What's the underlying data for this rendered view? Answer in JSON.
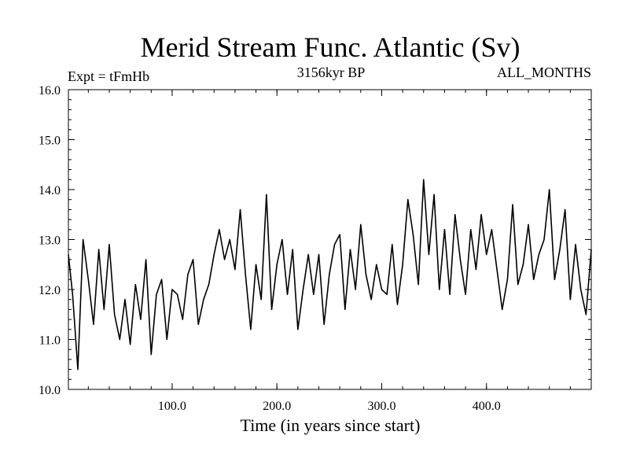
{
  "chart_data": {
    "type": "line",
    "title": "Merid Stream Func. Atlantic (Sv)",
    "subtitle_left": "Expt = tFmHb",
    "subtitle_center": "3156kyr BP",
    "subtitle_right": "ALL_MONTHS",
    "xlabel": "Time (in years since start)",
    "ylabel": "",
    "xlim": [
      1,
      500
    ],
    "ylim": [
      10.0,
      16.0
    ],
    "xticks": [
      100.0,
      200.0,
      300.0,
      400.0
    ],
    "xtick_labels": [
      "100.0",
      "200.0",
      "300.0",
      "400.0"
    ],
    "yticks": [
      10.0,
      11.0,
      12.0,
      13.0,
      14.0,
      15.0,
      16.0
    ],
    "ytick_labels": [
      "10.0",
      "11.0",
      "12.0",
      "13.0",
      "14.0",
      "15.0",
      "16.0"
    ],
    "series": [
      {
        "name": "Merid Stream Func. Atlantic",
        "x": [
          1,
          5,
          10,
          15,
          20,
          25,
          30,
          35,
          40,
          45,
          50,
          55,
          60,
          65,
          70,
          75,
          80,
          85,
          90,
          95,
          100,
          105,
          110,
          115,
          120,
          125,
          130,
          135,
          140,
          145,
          150,
          155,
          160,
          165,
          170,
          175,
          180,
          185,
          190,
          195,
          200,
          205,
          210,
          215,
          220,
          225,
          230,
          235,
          240,
          245,
          250,
          255,
          260,
          265,
          270,
          275,
          280,
          285,
          290,
          295,
          300,
          305,
          310,
          315,
          320,
          325,
          330,
          335,
          340,
          345,
          350,
          355,
          360,
          365,
          370,
          375,
          380,
          385,
          390,
          395,
          400,
          405,
          410,
          415,
          420,
          425,
          430,
          435,
          440,
          445,
          450,
          455,
          460,
          465,
          470,
          475,
          480,
          485,
          490,
          495,
          500
        ],
        "values": [
          12.7,
          11.9,
          10.4,
          13.0,
          12.2,
          11.3,
          12.8,
          11.6,
          12.9,
          11.5,
          11.0,
          11.8,
          10.9,
          12.1,
          11.4,
          12.6,
          10.7,
          11.9,
          12.2,
          11.0,
          12.0,
          11.9,
          11.4,
          12.3,
          12.6,
          11.3,
          11.8,
          12.1,
          12.7,
          13.2,
          12.6,
          13.0,
          12.4,
          13.6,
          12.3,
          11.2,
          12.5,
          11.8,
          13.9,
          11.6,
          12.5,
          13.0,
          11.9,
          12.8,
          11.2,
          12.0,
          12.7,
          11.9,
          12.7,
          11.3,
          12.3,
          12.9,
          13.1,
          11.6,
          12.8,
          12.0,
          13.3,
          12.3,
          11.8,
          12.5,
          12.0,
          11.9,
          12.9,
          11.7,
          12.5,
          13.8,
          13.1,
          12.1,
          14.2,
          12.7,
          13.9,
          12.0,
          13.2,
          11.9,
          13.5,
          12.6,
          11.9,
          13.2,
          12.4,
          13.5,
          12.7,
          13.2,
          12.4,
          11.6,
          12.2,
          13.7,
          12.1,
          12.5,
          13.3,
          12.2,
          12.7,
          13.0,
          14.0,
          12.2,
          12.8,
          13.6,
          11.8,
          12.9,
          12.0,
          11.5,
          12.8
        ]
      }
    ]
  }
}
